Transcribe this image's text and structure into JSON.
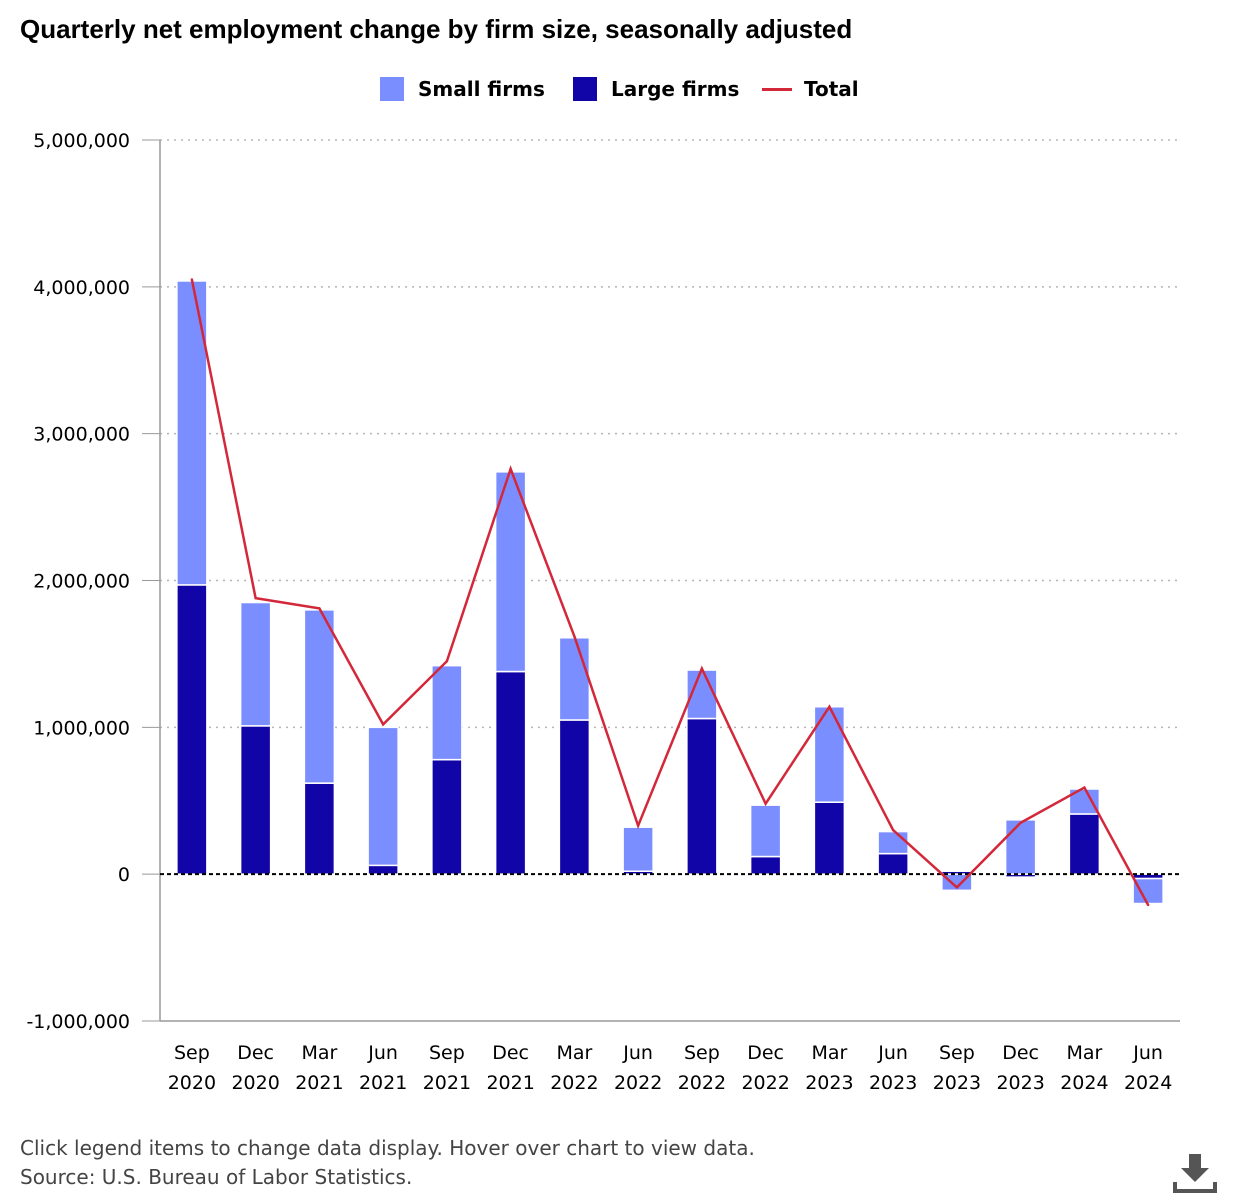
{
  "chart_data": {
    "type": "bar",
    "stacked": true,
    "title": "Quarterly net employment change by firm size, seasonally adjusted",
    "xlabel": "",
    "ylabel": "",
    "ylim": [
      -1000000,
      5000000
    ],
    "yticks": [
      5000000,
      4000000,
      3000000,
      2000000,
      1000000,
      0,
      -1000000
    ],
    "ytick_labels": [
      "5,000,000",
      "4,000,000",
      "3,000,000",
      "2,000,000",
      "1,000,000",
      "0",
      "-1,000,000"
    ],
    "grid": true,
    "legend_position": "top-center",
    "categories": [
      [
        "Sep",
        "2020"
      ],
      [
        "Dec",
        "2020"
      ],
      [
        "Mar",
        "2021"
      ],
      [
        "Jun",
        "2021"
      ],
      [
        "Sep",
        "2021"
      ],
      [
        "Dec",
        "2021"
      ],
      [
        "Mar",
        "2022"
      ],
      [
        "Jun",
        "2022"
      ],
      [
        "Sep",
        "2022"
      ],
      [
        "Dec",
        "2022"
      ],
      [
        "Mar",
        "2023"
      ],
      [
        "Jun",
        "2023"
      ],
      [
        "Sep",
        "2023"
      ],
      [
        "Dec",
        "2023"
      ],
      [
        "Mar",
        "2024"
      ],
      [
        "Jun",
        "2024"
      ]
    ],
    "series": [
      {
        "name": "Small firms",
        "kind": "bar",
        "color": "#7b8eff",
        "values": [
          2070000,
          840000,
          1180000,
          940000,
          640000,
          1360000,
          560000,
          300000,
          330000,
          350000,
          650000,
          150000,
          -110000,
          370000,
          170000,
          -170000
        ]
      },
      {
        "name": "Large firms",
        "kind": "bar",
        "color": "#1205a8",
        "values": [
          1970000,
          1010000,
          620000,
          60000,
          780000,
          1380000,
          1050000,
          20000,
          1060000,
          120000,
          490000,
          140000,
          20000,
          -20000,
          410000,
          -30000
        ]
      },
      {
        "name": "Total",
        "kind": "line",
        "color": "#d3283a",
        "values": [
          4050000,
          1880000,
          1810000,
          1020000,
          1450000,
          2760000,
          1620000,
          330000,
          1400000,
          480000,
          1140000,
          300000,
          -90000,
          350000,
          590000,
          -210000
        ]
      }
    ]
  },
  "footer": {
    "line1": "Click legend items to change data display. Hover over chart to view data.",
    "line2": "Source: U.S. Bureau of Labor Statistics."
  },
  "icons": {
    "download": "download-icon"
  }
}
